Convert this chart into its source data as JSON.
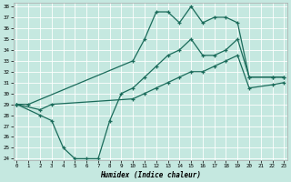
{
  "xlabel": "Humidex (Indice chaleur)",
  "bg_color": "#c5e8e0",
  "grid_color": "#ffffff",
  "line_color": "#1a6b5a",
  "xlim": [
    0,
    23
  ],
  "ylim": [
    24,
    38
  ],
  "yticks": [
    24,
    25,
    26,
    27,
    28,
    29,
    30,
    31,
    32,
    33,
    34,
    35,
    36,
    37,
    38
  ],
  "xticks": [
    0,
    1,
    2,
    3,
    4,
    5,
    6,
    7,
    8,
    9,
    10,
    11,
    12,
    13,
    14,
    15,
    16,
    17,
    18,
    19,
    20,
    21,
    22,
    23
  ],
  "line_top_x": [
    0,
    1,
    10,
    11,
    12,
    13,
    14,
    15,
    16,
    17,
    18,
    19,
    20,
    22,
    23
  ],
  "line_top_y": [
    29.0,
    29.0,
    33.0,
    35.0,
    37.5,
    37.5,
    36.5,
    38.0,
    36.5,
    37.0,
    37.0,
    36.5,
    31.5,
    31.5,
    31.5
  ],
  "line_bot_x": [
    0,
    2,
    3,
    4,
    5,
    6,
    7,
    8,
    9,
    10,
    11,
    12,
    13,
    14,
    15,
    16,
    17,
    18,
    19,
    20,
    22,
    23
  ],
  "line_bot_y": [
    29.0,
    28.0,
    27.5,
    25.0,
    24.0,
    24.0,
    24.0,
    27.5,
    30.0,
    30.5,
    31.5,
    32.5,
    33.5,
    34.0,
    35.0,
    33.5,
    33.5,
    34.0,
    35.0,
    31.5,
    31.5,
    31.5
  ],
  "line_mid_x": [
    0,
    2,
    3,
    10,
    11,
    12,
    13,
    14,
    15,
    16,
    17,
    18,
    19,
    20,
    22,
    23
  ],
  "line_mid_y": [
    29.0,
    28.5,
    29.0,
    29.5,
    30.0,
    30.5,
    31.0,
    31.5,
    32.0,
    32.0,
    32.5,
    33.0,
    33.5,
    30.5,
    30.8,
    31.0
  ]
}
